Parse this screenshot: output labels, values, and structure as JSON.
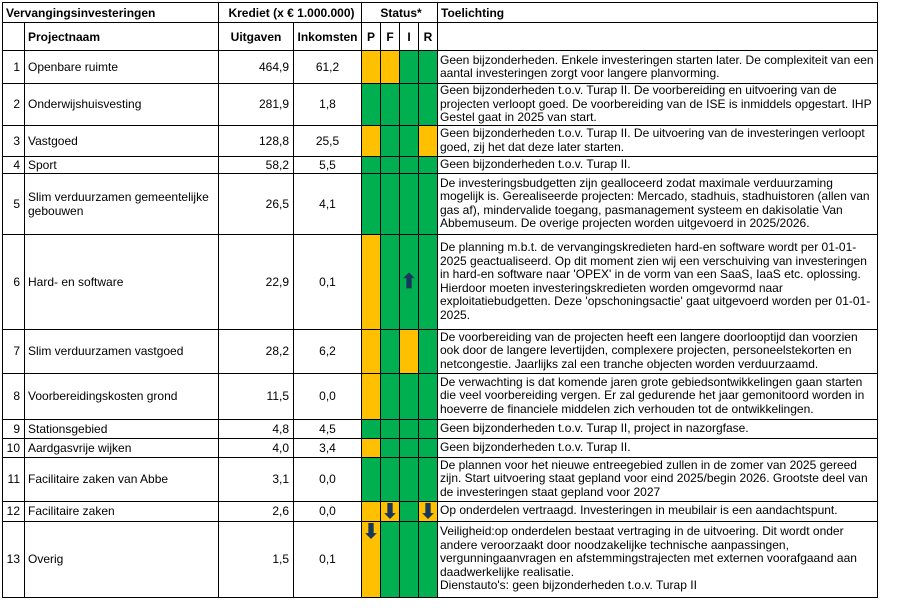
{
  "header": {
    "title": "Vervangingsinvesteringen",
    "krediet": "Krediet (x € 1.000.000)",
    "status": "Status*",
    "toelichting": "Toelichting",
    "projectnaam": "Projectnaam",
    "uitgaven": "Uitgaven",
    "inkomsten": "Inkomsten",
    "p": "P",
    "f": "F",
    "i": "I",
    "r": "R"
  },
  "colors": {
    "green": "#00b050",
    "yellow": "#ffc000",
    "arrow": "#17365d"
  },
  "rows": [
    {
      "nr": "1",
      "name": "Openbare ruimte",
      "uitgaven": "464,9",
      "inkomsten": "61,2",
      "status": [
        "yellow",
        "yellow",
        "green",
        "green"
      ],
      "arrows": [
        null,
        null,
        null,
        null
      ],
      "note": "Geen bijzonderheden. Enkele investeringen starten later. De complexiteit van een aantal investeringen zorgt voor langere planvorming."
    },
    {
      "nr": "2",
      "name": "Onderwijshuisvesting",
      "uitgaven": "281,9",
      "inkomsten": "1,8",
      "status": [
        "green",
        "green",
        "green",
        "green"
      ],
      "arrows": [
        null,
        null,
        null,
        null
      ],
      "note": "Geen bijzonderheden t.o.v. Turap II. De voorbereiding en uitvoering van de projecten verloopt goed. De voorbereiding van de ISE is inmiddels opgestart. IHP Gestel gaat in 2025 van start."
    },
    {
      "nr": "3",
      "name": "Vastgoed",
      "uitgaven": "128,8",
      "inkomsten": "25,5",
      "status": [
        "yellow",
        "green",
        "green",
        "yellow"
      ],
      "arrows": [
        null,
        null,
        null,
        null
      ],
      "note": "Geen bijzonderheden t.o.v. Turap II. De uitvoering van de investeringen verloopt goed, zij het dat deze later starten."
    },
    {
      "nr": "4",
      "name": "Sport",
      "uitgaven": "58,2",
      "inkomsten": "5,5",
      "status": [
        "green",
        "green",
        "green",
        "green"
      ],
      "arrows": [
        null,
        null,
        null,
        null
      ],
      "note": "Geen bijzonderheden t.o.v. Turap II."
    },
    {
      "nr": "5",
      "name": "Slim verduurzamen gemeentelijke gebouwen",
      "uitgaven": "26,5",
      "inkomsten": "4,1",
      "status": [
        "green",
        "green",
        "green",
        "green"
      ],
      "arrows": [
        null,
        null,
        null,
        null
      ],
      "note": "De investeringsbudgetten zijn gealloceerd zodat maximale verduurzaming mogelijk is. Gerealiseerde projecten: Mercado, stadhuis, stadhuistoren (allen van gas af), mindervalide toegang, pasmanagement systeem en dakisolatie Van Abbemuseum. De overige projecten worden uitgevoerd in 2025/2026."
    },
    {
      "nr": "6",
      "name": "Hard- en software",
      "uitgaven": "22,9",
      "inkomsten": "0,1",
      "status": [
        "yellow",
        "green",
        "green",
        "green"
      ],
      "arrows": [
        null,
        null,
        "up",
        null
      ],
      "note": "De planning m.b.t. de vervangingskredieten hard-en software wordt per 01-01-2025 geactualiseerd. Op dit moment zien wij een verschuiving van investeringen in hard-en software naar 'OPEX' in de vorm van een SaaS, IaaS etc. oplossing. Hierdoor moeten investeringskredieten worden omgevormd naar exploitatiebudgetten. Deze 'opschoningsactie' gaat uitgevoerd worden per 01-01-2025."
    },
    {
      "nr": "7",
      "name": "Slim verduurzamen vastgoed",
      "uitgaven": "28,2",
      "inkomsten": "6,2",
      "status": [
        "yellow",
        "green",
        "yellow",
        "green"
      ],
      "arrows": [
        null,
        null,
        null,
        null
      ],
      "note": "De voorbereiding van de projecten heeft een langere doorlooptijd dan voorzien ook door de langere levertijden, complexere projecten, personeelstekorten en netcongestie. Jaarlijks zal een tranche objecten worden verduurzaamd."
    },
    {
      "nr": "8",
      "name": "Voorbereidingskosten grond",
      "uitgaven": "11,5",
      "inkomsten": "0,0",
      "status": [
        "yellow",
        "green",
        "green",
        "green"
      ],
      "arrows": [
        null,
        null,
        null,
        null
      ],
      "note": "De verwachting is dat komende jaren grote gebiedsontwikkelingen gaan starten die veel voorbereiding vergen. Er zal gedurende het jaar gemonitoord worden in hoeverre de financiele middelen zich verhouden tot de ontwikkelingen."
    },
    {
      "nr": "9",
      "name": "Stationsgebied",
      "uitgaven": "4,8",
      "inkomsten": "4,5",
      "status": [
        "green",
        "green",
        "green",
        "green"
      ],
      "arrows": [
        null,
        null,
        null,
        null
      ],
      "note": "Geen bijzonderheden t.o.v. Turap II, project in nazorgfase."
    },
    {
      "nr": "10",
      "name": "Aardgasvrije wijken",
      "uitgaven": "4,0",
      "inkomsten": "3,4",
      "status": [
        "yellow",
        "green",
        "green",
        "green"
      ],
      "arrows": [
        null,
        null,
        null,
        null
      ],
      "note": "Geen bijzonderheden t.o.v. Turap II."
    },
    {
      "nr": "11",
      "name": "Facilitaire zaken van Abbe",
      "uitgaven": "3,1",
      "inkomsten": "0,0",
      "status": [
        "green",
        "green",
        "green",
        "green"
      ],
      "arrows": [
        null,
        null,
        null,
        null
      ],
      "note": "De plannen voor het nieuwe entreegebied zullen in de zomer van 2025 gereed zijn. Start uitvoering staat gepland voor eind 2025/begin 2026. Grootste deel van de investeringen staat gepland voor 2027"
    },
    {
      "nr": "12",
      "name": "Facilitaire zaken",
      "uitgaven": "2,6",
      "inkomsten": "0,0",
      "status": [
        "yellow",
        "yellow",
        "green",
        "yellow"
      ],
      "arrows": [
        null,
        "down",
        null,
        "down"
      ],
      "note": "Op onderdelen vertraagd. Investeringen in meubilair is een aandachtspunt."
    },
    {
      "nr": "13",
      "name": "Overig",
      "uitgaven": "1,5",
      "inkomsten": "0,1",
      "status": [
        "yellow",
        "green",
        "green",
        "green"
      ],
      "arrows": [
        "down",
        null,
        null,
        null
      ],
      "note": "Veiligheid:op onderdelen bestaat vertraging in de uitvoering. Dit wordt onder andere veroorzaakt door noodzakelijke technische aanpassingen, vergunningaanvragen en afstemmingstrajecten met externen voorafgaand aan daadwerkelijke realisatie.\nDienstauto's: geen bijzonderheden t.o.v. Turap II"
    }
  ]
}
